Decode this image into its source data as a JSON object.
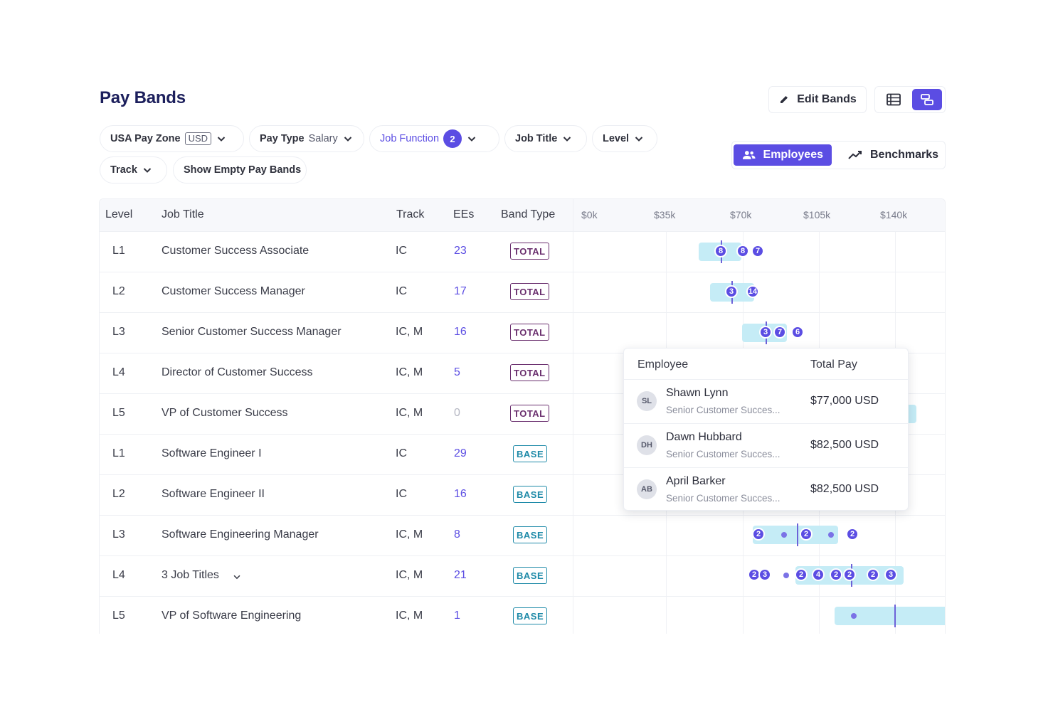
{
  "page": {
    "title": "Pay Bands"
  },
  "header": {
    "edit_bands_label": "Edit Bands"
  },
  "filters": {
    "zone_label": "USA Pay Zone",
    "zone_currency": "USD",
    "pay_type_label": "Pay Type",
    "pay_type_value": "Salary",
    "job_function_label": "Job Function",
    "job_function_count": "2",
    "job_title_label": "Job Title",
    "level_label": "Level",
    "track_label": "Track",
    "show_empty_label": "Show Empty Pay Bands"
  },
  "mode": {
    "employees_label": "Employees",
    "benchmarks_label": "Benchmarks",
    "selected": "Employees"
  },
  "table": {
    "columns": [
      "Level",
      "Job Title",
      "Track",
      "EEs",
      "Band Type"
    ],
    "axis_ticks": [
      "$0k",
      "$35k",
      "$70k",
      "$105k",
      "$140k"
    ],
    "rows": [
      {
        "level": "L1",
        "title": "Customer Success Associate",
        "track": "IC",
        "ees": "23",
        "band": "TOTAL"
      },
      {
        "level": "L2",
        "title": "Customer Success Manager",
        "track": "IC",
        "ees": "17",
        "band": "TOTAL"
      },
      {
        "level": "L3",
        "title": "Senior Customer Success Manager",
        "track": "IC, M",
        "ees": "16",
        "band": "TOTAL"
      },
      {
        "level": "L4",
        "title": "Director of Customer Success",
        "track": "IC, M",
        "ees": "5",
        "band": "TOTAL"
      },
      {
        "level": "L5",
        "title": "VP of Customer Success",
        "track": "IC, M",
        "ees": "0",
        "band": "TOTAL"
      },
      {
        "level": "L1",
        "title": "Software Engineer I",
        "track": "IC",
        "ees": "29",
        "band": "BASE"
      },
      {
        "level": "L2",
        "title": "Software Engineer II",
        "track": "IC",
        "ees": "16",
        "band": "BASE"
      },
      {
        "level": "L3",
        "title": "Software Engineering Manager",
        "track": "IC, M",
        "ees": "8",
        "band": "BASE"
      },
      {
        "level": "L4",
        "title": "3 Job Titles",
        "track": "IC, M",
        "ees": "21",
        "band": "BASE"
      },
      {
        "level": "L5",
        "title": "VP of Software Engineering",
        "track": "IC, M",
        "ees": "1",
        "band": "BASE"
      }
    ],
    "bubbles": {
      "row0": [
        "8",
        "8",
        "7"
      ],
      "row1": [
        "3",
        "14"
      ],
      "row2": [
        "3",
        "7",
        "6"
      ],
      "row7": [
        "2",
        "2",
        "2"
      ],
      "row8": [
        "2",
        "3",
        "2",
        "4",
        "2",
        "2",
        "2",
        "3"
      ]
    }
  },
  "popup": {
    "header_employee": "Employee",
    "header_pay": "Total Pay",
    "entries": [
      {
        "initials": "SL",
        "name": "Shawn Lynn",
        "role": "Senior Customer Succes...",
        "pay": "$77,000 USD"
      },
      {
        "initials": "DH",
        "name": "Dawn Hubbard",
        "role": "Senior Customer Succes...",
        "pay": "$82,500 USD"
      },
      {
        "initials": "AB",
        "name": "April Barker",
        "role": "Senior Customer Succes...",
        "pay": "$82,500 USD"
      }
    ]
  },
  "colors": {
    "accent": "#5b4de3",
    "band_fill": "#c5ecf6",
    "total_tag": "#6a2f6e",
    "base_tag": "#1e8aa8"
  }
}
